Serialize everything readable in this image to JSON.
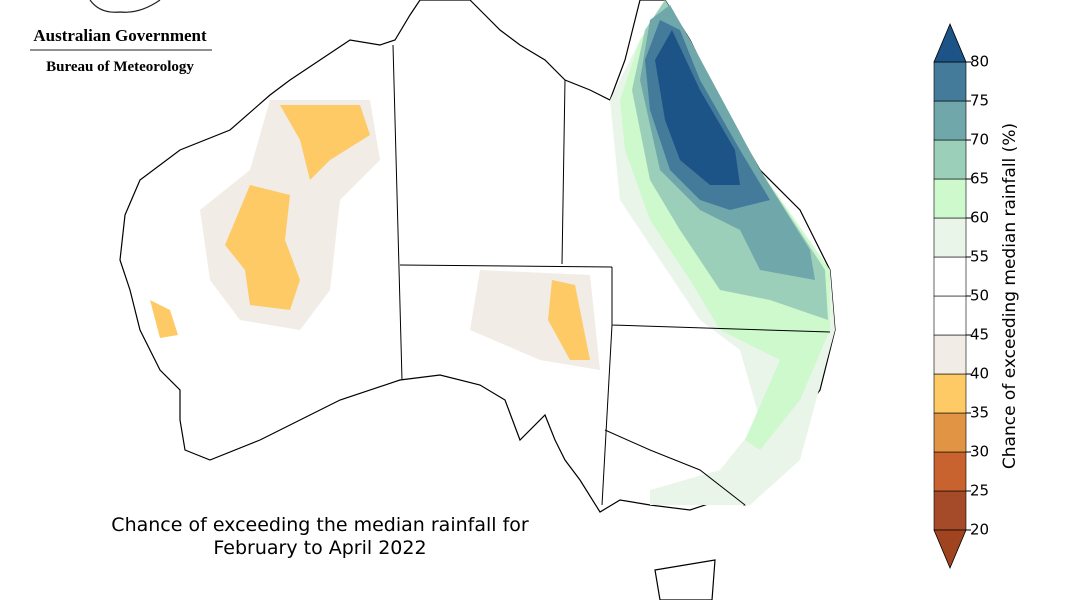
{
  "header": {
    "government": "Australian Government",
    "agency": "Bureau of Meteorology"
  },
  "map": {
    "title": [
      "Chance of exceeding the median rainfall for",
      "February to April 2022"
    ]
  },
  "colorbar": {
    "label": "Chance of exceeding median rainfall (%)",
    "ticks": [
      20,
      25,
      30,
      35,
      40,
      45,
      50,
      55,
      60,
      65,
      70,
      75,
      80
    ],
    "colors": [
      "#a64b29",
      "#c8622f",
      "#e09444",
      "#fdca66",
      "#f1ece6",
      "#ffffff",
      "#ffffff",
      "#e9f5e9",
      "#cdf9cd",
      "#9ccfb9",
      "#70a7ab",
      "#447b9b"
    ],
    "under_color": "#a0431f",
    "over_color": "#1c5487"
  }
}
